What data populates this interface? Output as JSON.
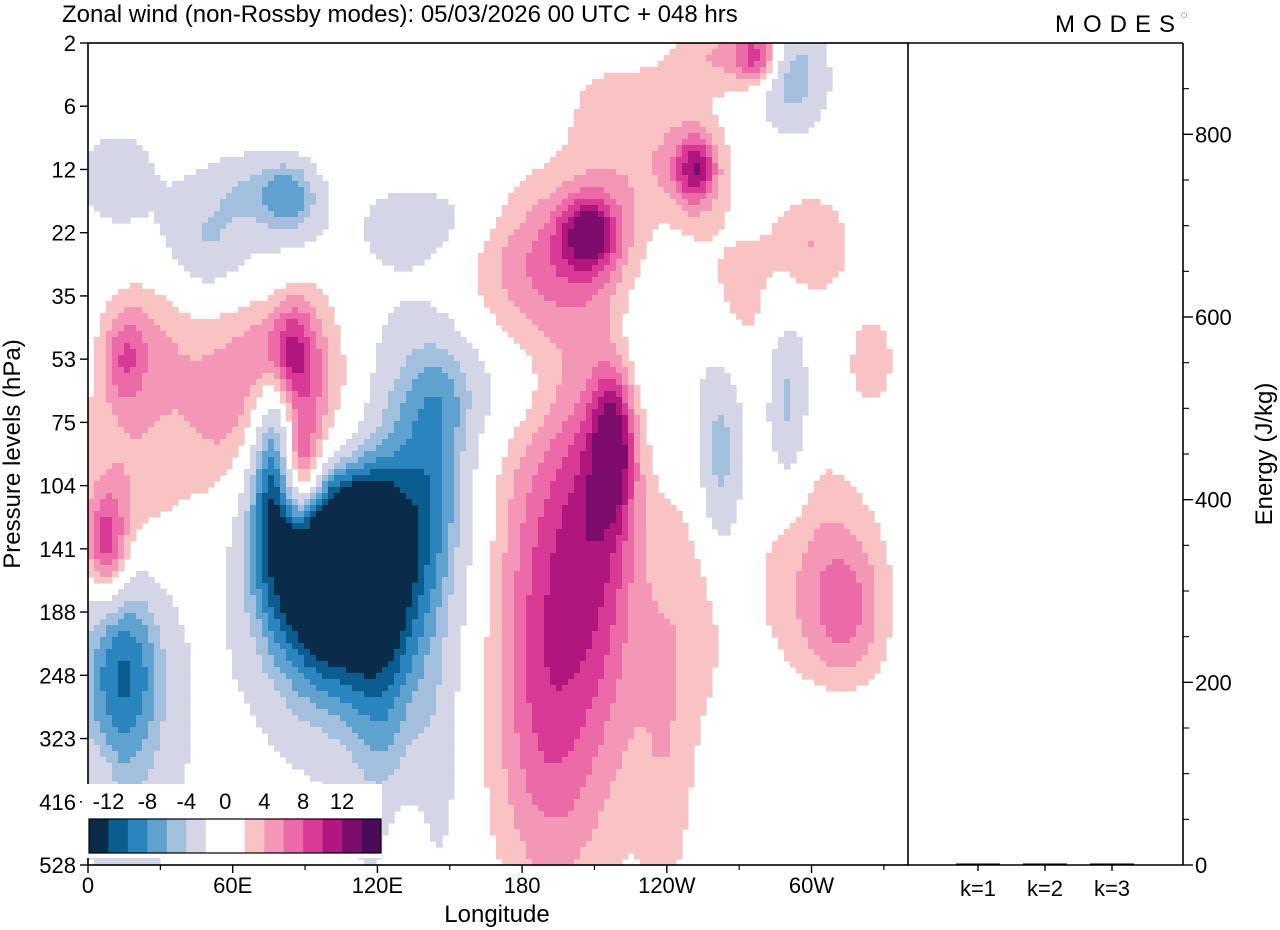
{
  "header": {
    "title": "Zonal wind (non-Rossby modes):  05/03/2026  00 UTC  + 048 hrs",
    "brand": "MODES"
  },
  "colors": {
    "frame": "#000000",
    "background": "#ffffff"
  },
  "chart_data": [
    {
      "type": "heatmap",
      "title": "Zonal wind (non-Rossby modes):  05/03/2026  00 UTC  + 048 hrs",
      "xlabel": "Longitude",
      "ylabel": "Pressure levels (hPa)",
      "x_ticks": [
        "0",
        "60E",
        "120E",
        "180",
        "120W",
        "60W"
      ],
      "x_tick_degrees": [
        0,
        60,
        120,
        180,
        240,
        300
      ],
      "xlim": [
        0,
        340
      ],
      "y_ticks": [
        "2",
        "6",
        "12",
        "22",
        "35",
        "53",
        "75",
        "104",
        "141",
        "188",
        "248",
        "323",
        "416",
        "528"
      ],
      "colorbar": {
        "labels": [
          "-12",
          "-8",
          "-4",
          "0",
          "4",
          "8",
          "12"
        ],
        "colors": [
          "#0a2c4a",
          "#0c5d8f",
          "#2a84bd",
          "#5fa2cf",
          "#a2bfde",
          "#d4d6e8",
          "#ffffff",
          "#ffffff",
          "#f9c3c3",
          "#f497b7",
          "#ec6aa7",
          "#d93a95",
          "#b0167d",
          "#7c0d6c",
          "#4d0a5a"
        ]
      },
      "blobs": [
        {
          "lon": 96,
          "lev": 8.2,
          "rx": 16,
          "ry": 1.3,
          "v": -13.5
        },
        {
          "lon": 112,
          "lev": 7.9,
          "rx": 12,
          "ry": 0.9,
          "v": -11
        },
        {
          "lon": 108,
          "lev": 9.0,
          "rx": 26,
          "ry": 1.6,
          "v": -7
        },
        {
          "lon": 122,
          "lev": 9.5,
          "rx": 10,
          "ry": 3.2,
          "v": -5
        },
        {
          "lon": 136,
          "lev": 7.2,
          "rx": 14,
          "ry": 1.7,
          "v": -6
        },
        {
          "lon": 145,
          "lev": 6.4,
          "rx": 10,
          "ry": 1.4,
          "v": -5
        },
        {
          "lon": 78,
          "lev": 6.2,
          "rx": 6,
          "ry": 1.3,
          "v": -10
        },
        {
          "lon": 72,
          "lev": 7.0,
          "rx": 8,
          "ry": 1.2,
          "v": -5
        },
        {
          "lon": 15,
          "lev": 9.8,
          "rx": 12,
          "ry": 1.2,
          "v": -9
        },
        {
          "lon": 14,
          "lev": 10.6,
          "rx": 22,
          "ry": 2.6,
          "v": -3.5
        },
        {
          "lon": 50,
          "lev": 3.2,
          "rx": 14,
          "ry": 0.6,
          "v": -5
        },
        {
          "lon": 85,
          "lev": 2.4,
          "rx": 10,
          "ry": 0.5,
          "v": -8
        },
        {
          "lon": 66,
          "lev": 2.2,
          "rx": 14,
          "ry": 0.5,
          "v": -5
        },
        {
          "lon": 12,
          "lev": 1.7,
          "rx": 10,
          "ry": 0.8,
          "v": -5
        },
        {
          "lon": 138,
          "lev": 2.8,
          "rx": 20,
          "ry": 0.5,
          "v": -4
        },
        {
          "lon": 165,
          "lev": 5.5,
          "rx": 22,
          "ry": 0.6,
          "v": -3
        },
        {
          "lon": 230,
          "lev": 3.5,
          "rx": 14,
          "ry": 1.8,
          "v": -3.5
        },
        {
          "lon": 292,
          "lev": 0.5,
          "rx": 10,
          "ry": 0.6,
          "v": -7
        },
        {
          "lon": 262,
          "lev": 6.6,
          "rx": 7,
          "ry": 1.2,
          "v": -7
        },
        {
          "lon": 290,
          "lev": 5.7,
          "rx": 6,
          "ry": 1.0,
          "v": -6
        },
        {
          "lon": 145,
          "lev": 11.5,
          "rx": 7,
          "ry": 1.6,
          "v": -3
        },
        {
          "lon": 310,
          "lev": 11.0,
          "rx": 16,
          "ry": 1.2,
          "v": -3
        },
        {
          "lon": 20,
          "lev": 2.0,
          "rx": 24,
          "ry": 0.6,
          "v": -2.2
        },
        {
          "lon": 240,
          "lev": 2.8,
          "rx": 16,
          "ry": 0.5,
          "v": -2.2
        },
        {
          "lon": 75,
          "lev": 5.6,
          "rx": 26,
          "ry": 1.1,
          "v": 7
        },
        {
          "lon": 82,
          "lev": 4.9,
          "rx": 8,
          "ry": 0.6,
          "v": 10
        },
        {
          "lon": 15,
          "lev": 7.3,
          "rx": 18,
          "ry": 1.5,
          "v": 5
        },
        {
          "lon": 8,
          "lev": 8.0,
          "rx": 6,
          "ry": 0.6,
          "v": 9
        },
        {
          "lon": 104,
          "lev": 6.6,
          "rx": 22,
          "ry": 0.8,
          "v": 4.5
        },
        {
          "lon": 88,
          "lev": 6.8,
          "rx": 6,
          "ry": 0.6,
          "v": 9
        },
        {
          "lon": 200,
          "lev": 3.4,
          "rx": 30,
          "ry": 0.8,
          "v": 6
        },
        {
          "lon": 235,
          "lev": 2.3,
          "rx": 20,
          "ry": 0.8,
          "v": 6
        },
        {
          "lon": 208,
          "lev": 3.0,
          "rx": 8,
          "ry": 0.4,
          "v": 9
        },
        {
          "lon": 252,
          "lev": 2.0,
          "rx": 6,
          "ry": 0.4,
          "v": 9
        },
        {
          "lon": 190,
          "lev": 9.5,
          "rx": 14,
          "ry": 2.8,
          "v": 5
        },
        {
          "lon": 212,
          "lev": 7.4,
          "rx": 12,
          "ry": 1.8,
          "v": 7
        },
        {
          "lon": 218,
          "lev": 6.3,
          "rx": 6,
          "ry": 0.8,
          "v": 10
        },
        {
          "lon": 196,
          "lev": 8.4,
          "rx": 24,
          "ry": 3.0,
          "v": 3
        },
        {
          "lon": 205,
          "lev": 10.8,
          "rx": 26,
          "ry": 2.0,
          "v": 2.5
        },
        {
          "lon": 300,
          "lev": 8.6,
          "rx": 18,
          "ry": 1.6,
          "v": 3.5
        },
        {
          "lon": 315,
          "lev": 9.1,
          "rx": 12,
          "ry": 1.0,
          "v": 5.5
        },
        {
          "lon": 255,
          "lev": 8.5,
          "rx": 10,
          "ry": 1.6,
          "v": 2.5
        },
        {
          "lon": 240,
          "lev": 11.0,
          "rx": 8,
          "ry": 2.2,
          "v": 2.5
        },
        {
          "lon": 12,
          "lev": 1.2,
          "rx": 10,
          "ry": 0.8,
          "v": 4
        },
        {
          "lon": 80,
          "lev": 1.8,
          "rx": 40,
          "ry": 0.6,
          "v": 2.5
        },
        {
          "lon": 225,
          "lev": 0.9,
          "rx": 20,
          "ry": 0.6,
          "v": 3
        },
        {
          "lon": 265,
          "lev": 0.2,
          "rx": 16,
          "ry": 0.4,
          "v": 4
        },
        {
          "lon": 278,
          "lev": 0.2,
          "rx": 6,
          "ry": 0.3,
          "v": 8
        },
        {
          "lon": 300,
          "lev": 3.2,
          "rx": 12,
          "ry": 0.6,
          "v": 4
        },
        {
          "lon": 270,
          "lev": 4.2,
          "rx": 12,
          "ry": 0.8,
          "v": 2.5
        },
        {
          "lon": 25,
          "lev": 4.6,
          "rx": 12,
          "ry": 0.8,
          "v": 3
        },
        {
          "lon": 15,
          "lev": 5.0,
          "rx": 6,
          "ry": 0.5,
          "v": 5
        },
        {
          "lon": 325,
          "lev": 5.0,
          "rx": 8,
          "ry": 0.6,
          "v": 3
        },
        {
          "lon": 130,
          "lev": 12.6,
          "rx": 8,
          "ry": 0.6,
          "v": 2.5
        },
        {
          "lon": 5,
          "lev": 11.8,
          "rx": 4,
          "ry": 0.5,
          "v": 2.5
        }
      ]
    },
    {
      "type": "bar",
      "title": "",
      "xlabel": "",
      "ylabel": "Energy (J/kg)",
      "categories": [
        "k=1",
        "k=2",
        "k=3"
      ],
      "values": [
        1.5,
        1.2,
        1.0
      ],
      "ylim": [
        0,
        900
      ],
      "y_ticks": [
        0,
        200,
        400,
        600,
        800
      ]
    }
  ]
}
